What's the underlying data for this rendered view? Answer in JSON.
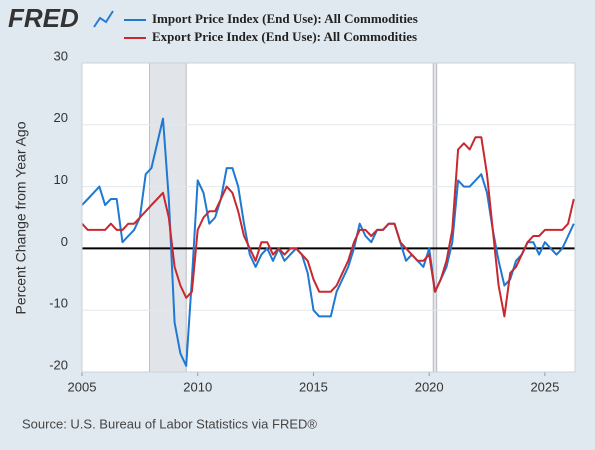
{
  "logo": "FRED",
  "chart_data": {
    "type": "line",
    "ylabel": "Percent Change from Year Ago",
    "source": "Source: U.S. Bureau of Labor Statistics via FRED®",
    "x": [
      2005,
      2005.25,
      2005.5,
      2005.75,
      2006,
      2006.25,
      2006.5,
      2006.75,
      2007,
      2007.25,
      2007.5,
      2007.75,
      2008,
      2008.25,
      2008.5,
      2008.75,
      2009,
      2009.25,
      2009.5,
      2009.75,
      2010,
      2010.25,
      2010.5,
      2010.75,
      2011,
      2011.25,
      2011.5,
      2011.75,
      2012,
      2012.25,
      2012.5,
      2012.75,
      2013,
      2013.25,
      2013.5,
      2013.75,
      2014,
      2014.25,
      2014.5,
      2014.75,
      2015,
      2015.25,
      2015.5,
      2015.75,
      2016,
      2016.25,
      2016.5,
      2016.75,
      2017,
      2017.25,
      2017.5,
      2017.75,
      2018,
      2018.25,
      2018.5,
      2018.75,
      2019,
      2019.25,
      2019.5,
      2019.75,
      2020,
      2020.25,
      2020.5,
      2020.75,
      2021,
      2021.25,
      2021.5,
      2021.75,
      2022,
      2022.25,
      2022.5,
      2022.75,
      2023,
      2023.25,
      2023.5,
      2023.75,
      2024,
      2024.25,
      2024.5,
      2024.75,
      2025,
      2025.25,
      2025.5,
      2025.75,
      2026,
      2026.25
    ],
    "series": [
      {
        "name": "Import Price Index (End Use): All Commodities",
        "color": "#1f78d1",
        "values": [
          7,
          8,
          9,
          10,
          7,
          8,
          8,
          1,
          2,
          3,
          5,
          12,
          13,
          17,
          21,
          8,
          -12,
          -17,
          -19,
          -5,
          11,
          9,
          4,
          5,
          8,
          13,
          13,
          10,
          4,
          -1,
          -3,
          -1,
          0,
          -2,
          0,
          -2,
          -1,
          0,
          -1,
          -4,
          -10,
          -11,
          -11,
          -11,
          -7,
          -5,
          -3,
          0,
          4,
          2,
          1,
          3,
          3,
          4,
          4,
          1,
          -2,
          -1,
          -2,
          -3,
          0,
          -7,
          -5,
          -3,
          1,
          11,
          10,
          10,
          11,
          12,
          9,
          3,
          -2,
          -6,
          -5,
          -2,
          -1,
          1,
          1,
          -1,
          1,
          0,
          -1,
          0,
          2,
          4
        ]
      },
      {
        "name": "Export Price Index (End Use): All Commodities",
        "color": "#c8282e",
        "values": [
          4,
          3,
          3,
          3,
          3,
          4,
          3,
          3,
          4,
          4,
          5,
          6,
          7,
          8,
          9,
          5,
          -3,
          -6,
          -8,
          -7,
          3,
          5,
          6,
          6,
          8,
          10,
          9,
          6,
          2,
          0,
          -2,
          1,
          1,
          -1,
          0,
          -1,
          0,
          0,
          -1,
          -2,
          -5,
          -7,
          -7,
          -7,
          -6,
          -4,
          -2,
          1,
          3,
          3,
          2,
          3,
          3,
          4,
          4,
          1,
          0,
          -1,
          -2,
          -2,
          -1,
          -7,
          -5,
          -2,
          3,
          16,
          17,
          16,
          18,
          18,
          12,
          3,
          -6,
          -11,
          -4,
          -3,
          -1,
          1,
          2,
          2,
          3,
          3,
          3,
          3,
          4,
          8
        ]
      }
    ],
    "recessions": [
      [
        2007.92,
        2009.5
      ],
      [
        2020.17,
        2020.33
      ]
    ],
    "reference_line": 0,
    "xlim": [
      2005,
      2026.3
    ],
    "xticks": [
      2005,
      2010,
      2015,
      2020,
      2025
    ],
    "ylim": [
      -20,
      30
    ],
    "yticks": [
      -20,
      -10,
      0,
      10,
      20,
      30
    ],
    "grid": true
  }
}
